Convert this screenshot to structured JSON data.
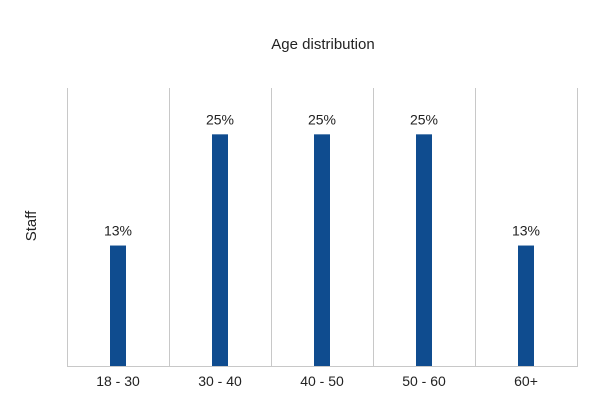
{
  "chart_data": {
    "type": "bar",
    "title": "Age distribution",
    "ylabel": "Staff",
    "xlabel": "",
    "categories": [
      "18 - 30",
      "30 - 40",
      "40 - 50",
      "50 - 60",
      "60+"
    ],
    "values": [
      13,
      25,
      25,
      25,
      13
    ],
    "data_labels": [
      "13%",
      "25%",
      "25%",
      "25%",
      "13%"
    ],
    "value_unit": "%",
    "ylim": [
      0,
      30
    ],
    "grid": "vertical separators between categories",
    "legend": "none",
    "colors": {
      "bar": "#0f4c8f",
      "grid": "#c8c8c8",
      "text": "#222222"
    }
  }
}
